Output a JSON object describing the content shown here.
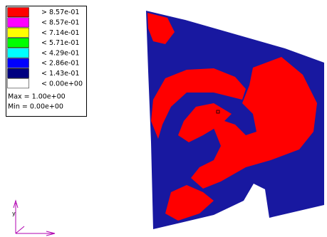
{
  "legend": {
    "entries": [
      {
        "color": "#ff0000",
        "label": "> 8.57e-01"
      },
      {
        "color": "#ff00ff",
        "label": "< 8.57e-01"
      },
      {
        "color": "#ffff00",
        "label": "< 7.14e-01"
      },
      {
        "color": "#00ff00",
        "label": "< 5.71e-01"
      },
      {
        "color": "#00ffff",
        "label": "< 4.29e-01"
      },
      {
        "color": "#0000ff",
        "label": "< 2.86e-01"
      },
      {
        "color": "#000080",
        "label": "< 1.43e-01"
      },
      {
        "color": "#ffffff",
        "label": "< 0.00e+00"
      }
    ],
    "max": "Max = 1.00e+00",
    "min": "Min = 0.00e+00"
  },
  "axes": {
    "y": "y"
  }
}
